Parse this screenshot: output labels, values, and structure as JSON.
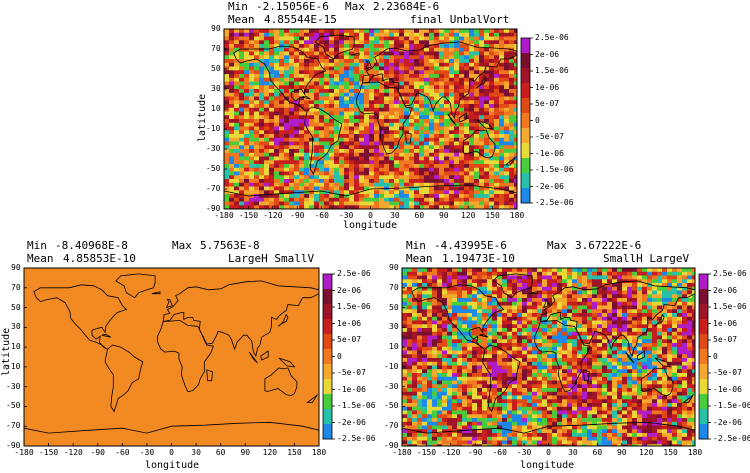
{
  "panels": [
    {
      "min_label": "Min",
      "min_value": "-2.15056E-6",
      "max_label": "Max",
      "max_value": "2.23684E-6",
      "mean_label": "Mean",
      "mean_value": "4.85544E-15",
      "field_name": "final UnbalVort",
      "xlabel": "longitude",
      "ylabel": "latitude"
    },
    {
      "min_label": "Min",
      "min_value": "-8.40968E-8",
      "max_label": "Max",
      "max_value": "5.7563E-8",
      "mean_label": "Mean",
      "mean_value": "4.85853E-10",
      "field_name": "LargeH SmallV",
      "xlabel": "longitude",
      "ylabel": "latitude"
    },
    {
      "min_label": "Min",
      "min_value": "-4.43995E-6",
      "max_label": "Max",
      "max_value": "3.67222E-6",
      "mean_label": "Mean",
      "mean_value": "1.19473E-10",
      "field_name": "SmallH LargeV",
      "xlabel": "longitude",
      "ylabel": "latitude"
    }
  ],
  "x_ticks": [
    "-180",
    "-150",
    "-120",
    "-90",
    "-60",
    "-30",
    "0",
    "30",
    "60",
    "90",
    "120",
    "150",
    "180"
  ],
  "y_ticks": [
    "90",
    "70",
    "50",
    "30",
    "10",
    "-10",
    "-30",
    "-50",
    "-70",
    "-90"
  ],
  "colorbar": {
    "labels": [
      "2.5e-06",
      "2e-06",
      "1.5e-06",
      "1e-06",
      "5e-07",
      "0",
      "-5e-07",
      "-1e-06",
      "-1.5e-06",
      "-2e-06",
      "-2.5e-06"
    ],
    "colors": [
      "#b01cc8",
      "#7a1030",
      "#a01428",
      "#c81e1e",
      "#e04a14",
      "#f07820",
      "#f5a82e",
      "#e8d838",
      "#48cc3c",
      "#28c0a8",
      "#1e88e8"
    ]
  }
}
